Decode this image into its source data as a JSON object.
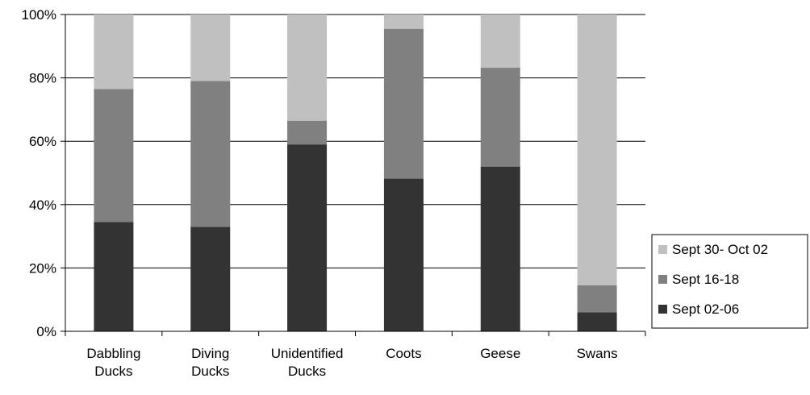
{
  "chart_data": {
    "type": "bar",
    "stacked": true,
    "percent_stacked": true,
    "title": "",
    "xlabel": "",
    "ylabel": "",
    "ylim": [
      0,
      100
    ],
    "y_ticks": [
      "0%",
      "20%",
      "40%",
      "60%",
      "80%",
      "100%"
    ],
    "categories": [
      [
        "Dabbling",
        "Ducks"
      ],
      [
        "Diving",
        "Ducks"
      ],
      [
        "Unidentified",
        "Ducks"
      ],
      [
        "Coots"
      ],
      [
        "Geese"
      ],
      [
        "Swans"
      ]
    ],
    "series": [
      {
        "name": "Sept 02-06",
        "color": "#333333",
        "values": [
          34.5,
          33,
          59,
          48.2,
          52,
          6
        ]
      },
      {
        "name": "Sept 16-18",
        "color": "#808080",
        "values": [
          42,
          46,
          7.5,
          47.3,
          31.2,
          8.5
        ]
      },
      {
        "name": "Sept 30- Oct 02",
        "color": "#c0c0c0",
        "values": [
          23.5,
          21,
          33.5,
          4.5,
          16.8,
          85.5
        ]
      }
    ],
    "grid": "horizontal",
    "legend_position": "right"
  }
}
